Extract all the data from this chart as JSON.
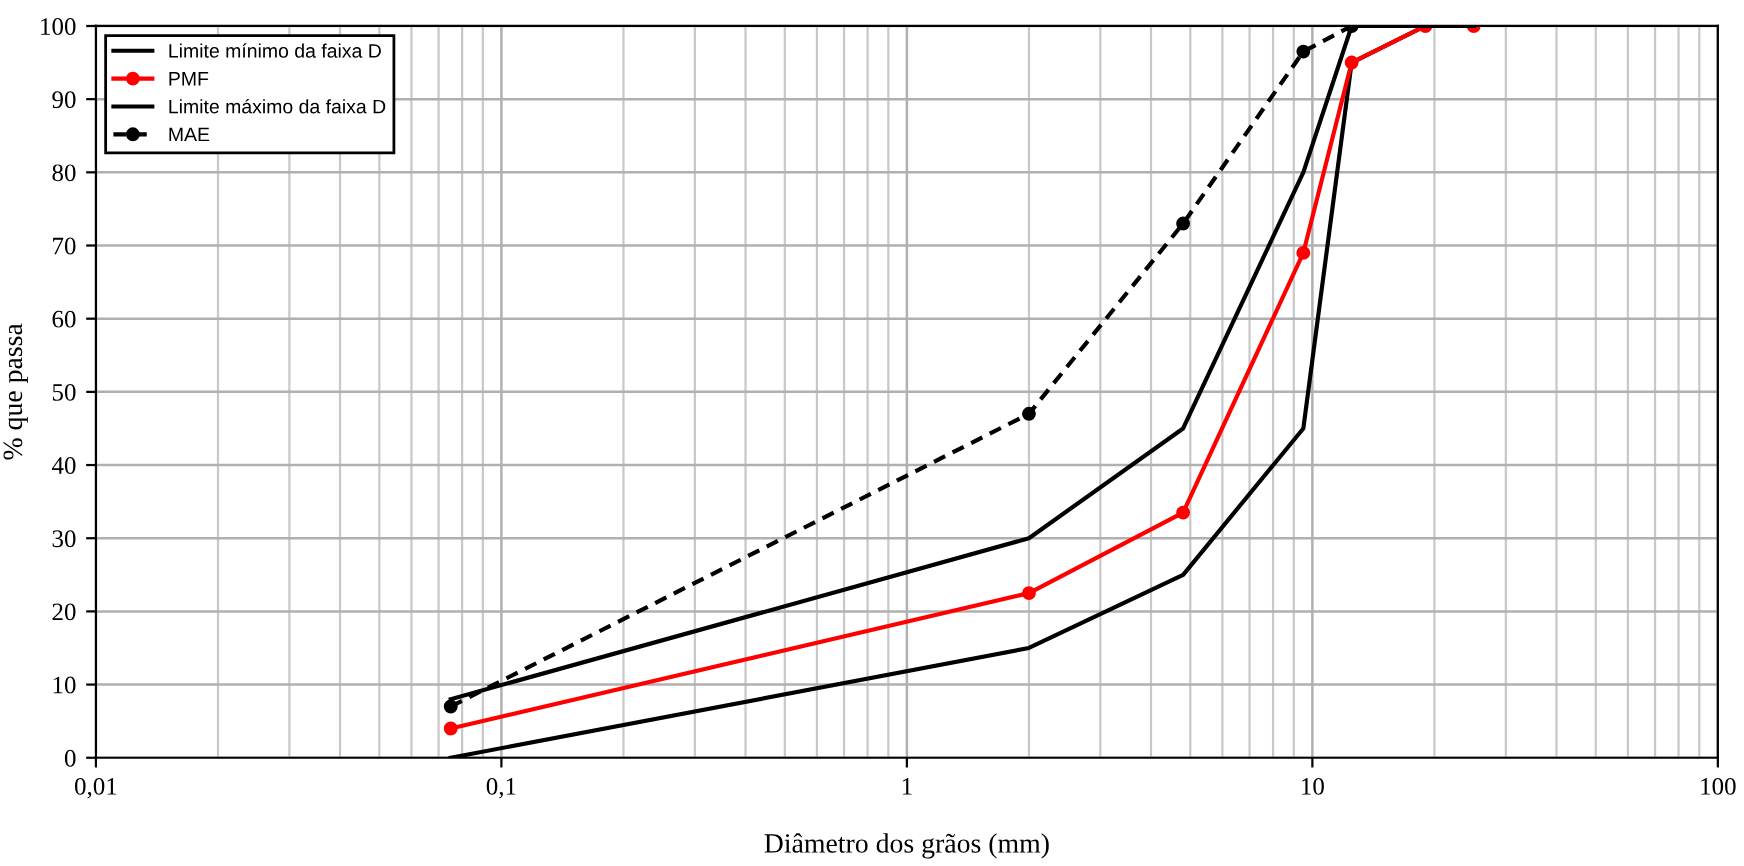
{
  "chart_data": {
    "type": "line",
    "xlabel": "Diâmetro dos grãos (mm)",
    "ylabel": "% que passa",
    "log": "x",
    "grid": true,
    "legend": "top left",
    "xlim": [
      0.01,
      100
    ],
    "xticks": [
      {
        "value": 0.01,
        "label": "0,01"
      },
      {
        "value": 0.1,
        "label": "0,1"
      },
      1,
      10,
      100
    ],
    "ylim": [
      0,
      100
    ],
    "yticks": [
      0,
      10,
      20,
      30,
      40,
      50,
      60,
      70,
      80,
      90,
      100
    ],
    "series": [
      {
        "name": "Limite mínimo da faixa D",
        "color": "#000000",
        "marker": "none",
        "line_style": "solid",
        "x": [
          0.075,
          2,
          4.8,
          9.5,
          12.5,
          19,
          25
        ],
        "values": [
          0,
          15,
          25,
          45,
          95,
          100,
          100
        ]
      },
      {
        "name": "PMF",
        "color": "#ff0000",
        "marker": "circle",
        "line_style": "solid",
        "x": [
          0.075,
          2,
          4.8,
          9.5,
          12.5,
          19,
          25
        ],
        "values": [
          4,
          22.5,
          33.5,
          69,
          95,
          100,
          100
        ]
      },
      {
        "name": "Limite máximo da faixa D",
        "color": "#000000",
        "marker": "none",
        "line_style": "solid",
        "x": [
          0.075,
          2,
          4.8,
          9.5,
          12.5,
          19,
          25
        ],
        "values": [
          8,
          30,
          45,
          80,
          100,
          100,
          100
        ]
      },
      {
        "name": "MAE",
        "color": "#000000",
        "marker": "circle",
        "line_style": "dashed",
        "x": [
          0.075,
          2,
          4.8,
          9.5,
          12.5
        ],
        "values": [
          7,
          47,
          73,
          96.5,
          100
        ]
      }
    ]
  }
}
